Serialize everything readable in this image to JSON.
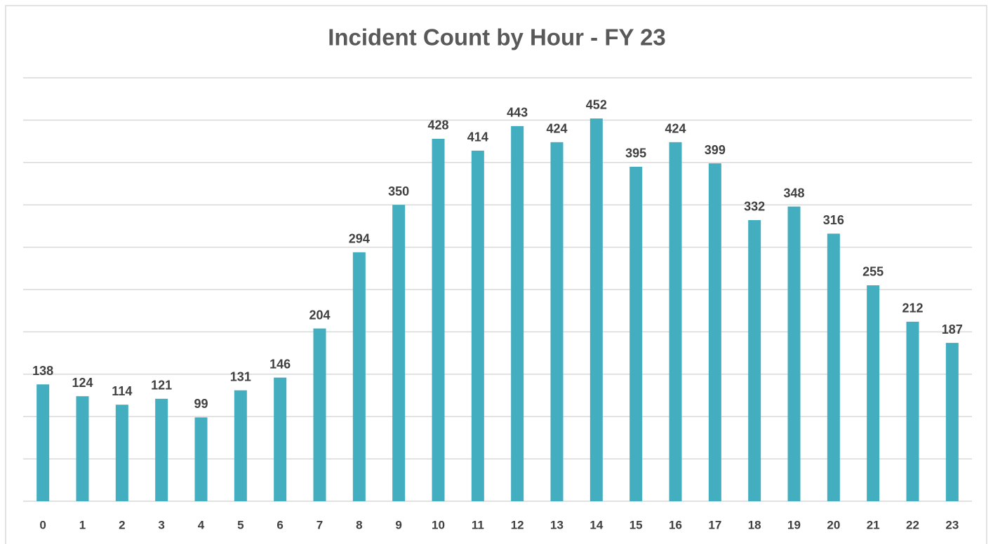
{
  "chart_data": {
    "type": "bar",
    "title": "Incident Count by Hour - FY 23",
    "categories": [
      "0",
      "1",
      "2",
      "3",
      "4",
      "5",
      "6",
      "7",
      "8",
      "9",
      "10",
      "11",
      "12",
      "13",
      "14",
      "15",
      "16",
      "17",
      "18",
      "19",
      "20",
      "21",
      "22",
      "23"
    ],
    "values": [
      138,
      124,
      114,
      121,
      99,
      131,
      146,
      204,
      294,
      350,
      428,
      414,
      443,
      424,
      452,
      395,
      424,
      399,
      332,
      348,
      316,
      255,
      212,
      187
    ],
    "color": "#43aebf",
    "ylim": [
      0,
      500
    ],
    "yticks": [
      0,
      50,
      100,
      150,
      200,
      250,
      300,
      350,
      400,
      450,
      500
    ],
    "grid": true
  }
}
